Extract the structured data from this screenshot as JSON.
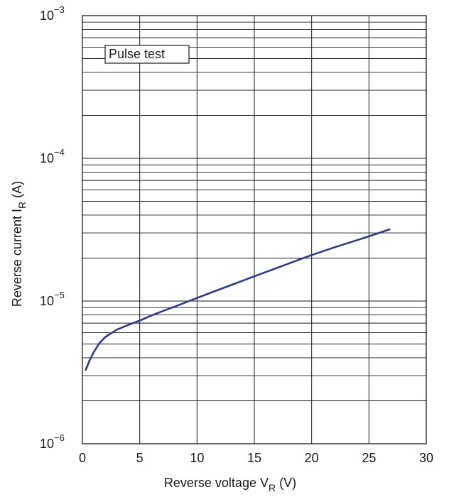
{
  "chart_data": {
    "type": "line",
    "title": "",
    "xlabel": {
      "main": "Reverse voltage  V",
      "sub": "R",
      "unit": "  (V)"
    },
    "ylabel": {
      "main": "Reverse current  I",
      "sub": "R",
      "unit": "  (A)"
    },
    "x_scale": "linear",
    "y_scale": "log",
    "xlim": [
      0,
      30
    ],
    "ylim": [
      1e-06,
      0.001
    ],
    "grid": true,
    "x_ticks": [
      {
        "value": 0,
        "label": "0"
      },
      {
        "value": 5,
        "label": "5"
      },
      {
        "value": 10,
        "label": "10"
      },
      {
        "value": 15,
        "label": "15"
      },
      {
        "value": 20,
        "label": "20"
      },
      {
        "value": 25,
        "label": "25"
      },
      {
        "value": 30,
        "label": "30"
      }
    ],
    "y_ticks": [
      {
        "value": 1e-06,
        "base": "10",
        "exp": "−6"
      },
      {
        "value": 1e-05,
        "base": "10",
        "exp": "−5"
      },
      {
        "value": 0.0001,
        "base": "10",
        "exp": "−4"
      },
      {
        "value": 0.001,
        "base": "10",
        "exp": "−3"
      }
    ],
    "annotation": {
      "text": "Pulse test",
      "position": "top-left"
    },
    "series": [
      {
        "color": "#2b3a8c",
        "x": [
          0.3,
          0.6,
          1,
          1.5,
          2,
          3,
          4,
          5,
          6,
          7,
          8,
          10,
          12,
          15,
          18,
          20,
          22,
          25,
          26.8
        ],
        "y": [
          3.3e-06,
          3.8e-06,
          4.4e-06,
          5.1e-06,
          5.6e-06,
          6.3e-06,
          6.8e-06,
          7.3e-06,
          7.9e-06,
          8.5e-06,
          9.1e-06,
          1.05e-05,
          1.21e-05,
          1.49e-05,
          1.83e-05,
          2.1e-05,
          2.38e-05,
          2.84e-05,
          3.18e-05
        ]
      }
    ]
  }
}
